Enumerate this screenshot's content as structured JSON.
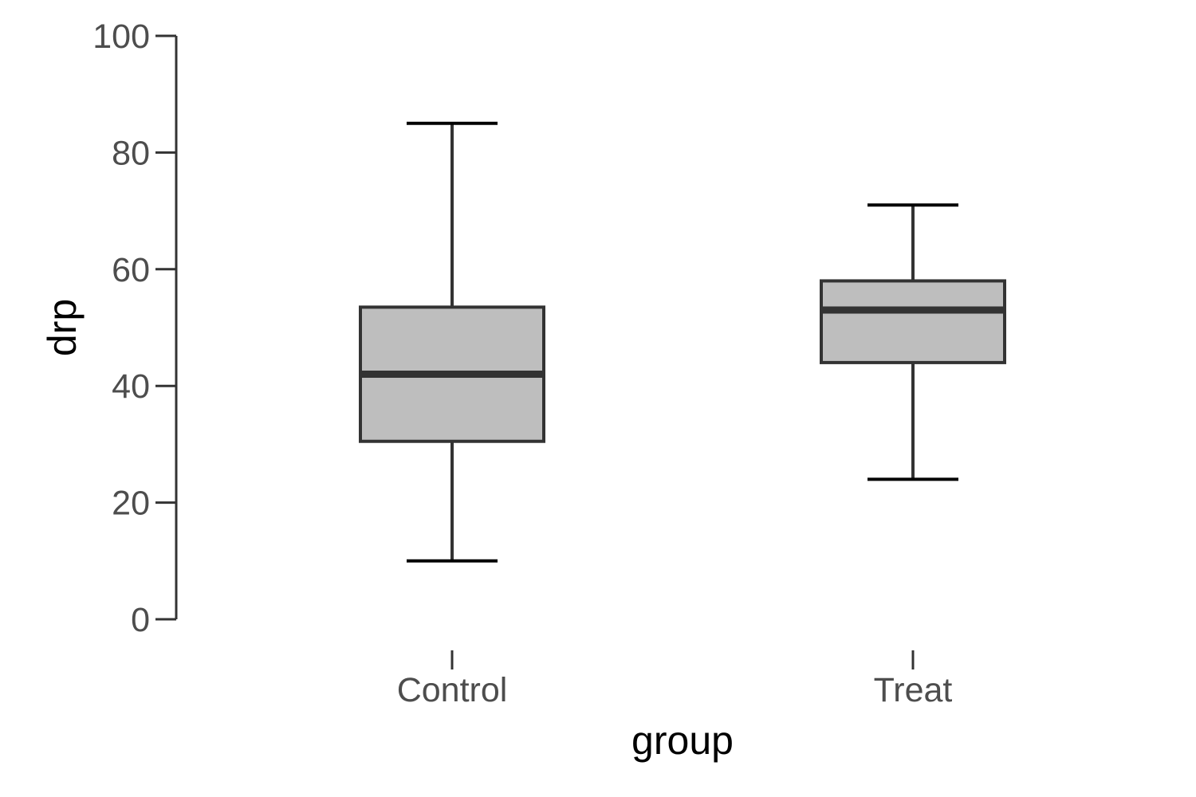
{
  "chart_data": {
    "type": "boxplot",
    "title": "",
    "xlabel": "group",
    "ylabel": "drp",
    "ylim": [
      0,
      100
    ],
    "y_ticks": [
      0,
      20,
      40,
      60,
      80,
      100
    ],
    "categories": [
      "Control",
      "Treat"
    ],
    "boxes": [
      {
        "category": "Control",
        "min": 10,
        "q1": 30.5,
        "median": 42,
        "q3": 53.5,
        "max": 85
      },
      {
        "category": "Treat",
        "min": 24,
        "q1": 44,
        "median": 53,
        "q3": 58,
        "max": 71
      }
    ],
    "grid": false,
    "legend": "none",
    "colors": {
      "box_fill": "#bebebe",
      "box_stroke": "#333333",
      "cap_stroke": "#000000",
      "tick_text": "#4d4d4d"
    }
  }
}
